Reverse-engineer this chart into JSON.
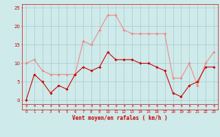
{
  "hours": [
    0,
    1,
    2,
    3,
    4,
    5,
    6,
    7,
    8,
    9,
    10,
    11,
    12,
    13,
    14,
    15,
    16,
    17,
    18,
    19,
    20,
    21,
    22,
    23
  ],
  "wind_avg": [
    0,
    7,
    5,
    2,
    4,
    3,
    7,
    9,
    8,
    9,
    13,
    11,
    11,
    11,
    10,
    10,
    9,
    8,
    2,
    1,
    4,
    5,
    9,
    9
  ],
  "wind_gust": [
    10,
    11,
    8,
    7,
    7,
    7,
    7,
    16,
    15,
    19,
    23,
    23,
    19,
    18,
    18,
    18,
    18,
    18,
    6,
    6,
    10,
    4,
    10,
    13
  ],
  "bg_color": "#ceeaea",
  "grid_color": "#aacaca",
  "line_avg_color": "#cc0000",
  "line_gust_color": "#ee8888",
  "xlabel": "Vent moyen/en rafales ( km/h )",
  "xlabel_color": "#cc0000",
  "tick_color": "#cc0000",
  "arrow_color": "#cc0000",
  "ylim": [
    -2.5,
    26
  ],
  "xlim": [
    -0.5,
    23.5
  ],
  "yticks": [
    0,
    5,
    10,
    15,
    20,
    25
  ]
}
